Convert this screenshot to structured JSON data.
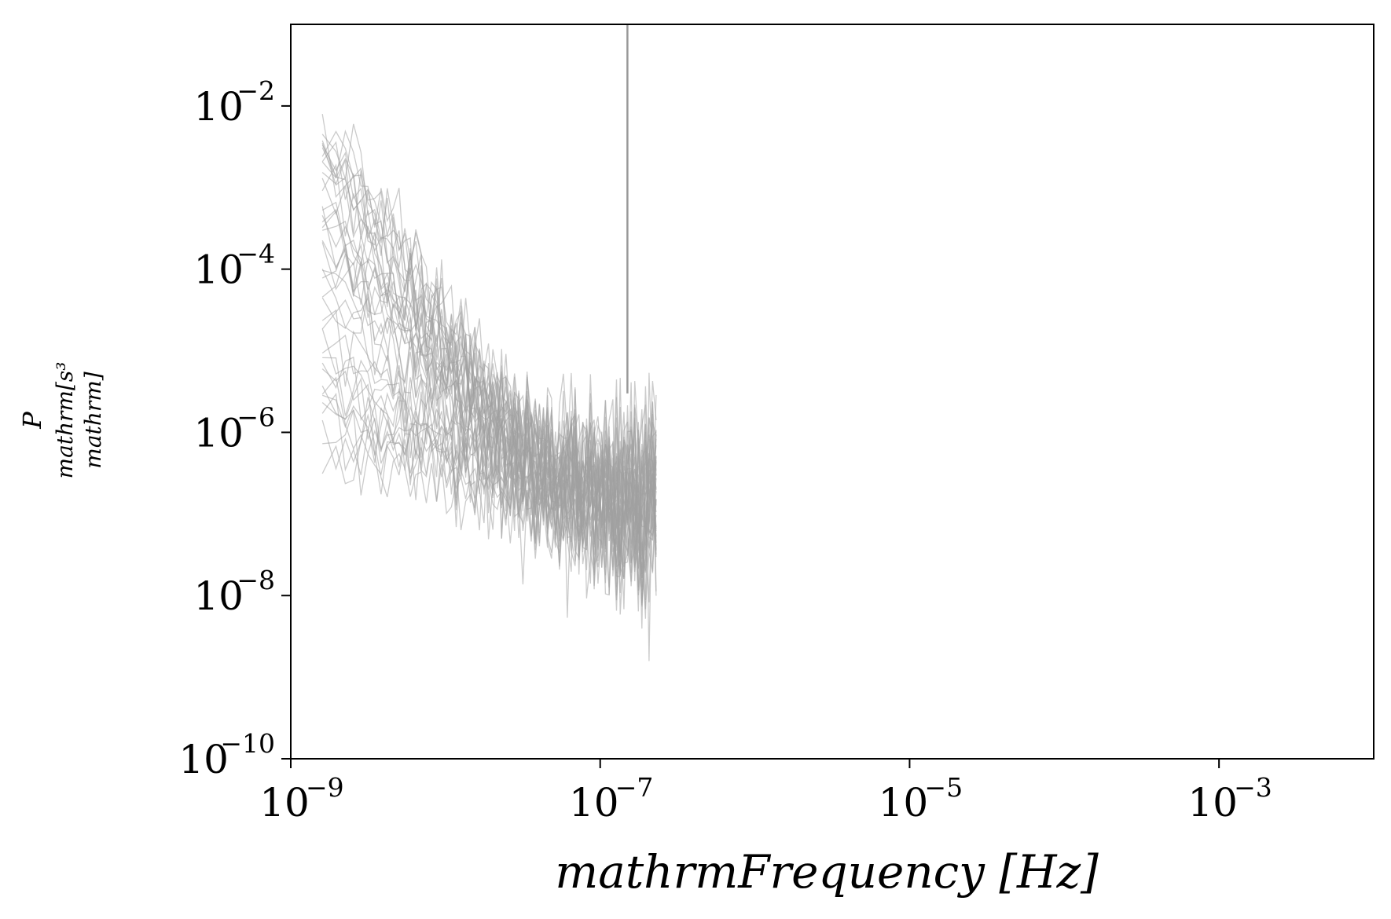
{
  "chart_data": {
    "type": "line",
    "title": "",
    "xlabel": "mathrmFrequency [Hz]",
    "ylabel_lines": [
      "P",
      "mathrm[s³",
      "mathrm]"
    ],
    "x_scale": "log",
    "y_scale": "log",
    "xlim": [
      1e-09,
      0.01
    ],
    "ylim": [
      1e-10,
      0.1
    ],
    "grid": false,
    "legend": "none",
    "line_color": "#a0a0a0",
    "x_ticks": [
      {
        "value": 1e-09,
        "base": "10",
        "exp": "−9"
      },
      {
        "value": 1e-07,
        "base": "10",
        "exp": "−7"
      },
      {
        "value": 1e-05,
        "base": "10",
        "exp": "−5"
      },
      {
        "value": 0.001,
        "base": "10",
        "exp": "−3"
      }
    ],
    "y_ticks": [
      {
        "value": 1e-10,
        "base": "10",
        "exp": "−10"
      },
      {
        "value": 1e-08,
        "base": "10",
        "exp": "−8"
      },
      {
        "value": 1e-06,
        "base": "10",
        "exp": "−6"
      },
      {
        "value": 0.0001,
        "base": "10",
        "exp": "−4"
      },
      {
        "value": 0.01,
        "base": "10",
        "exp": "−2"
      }
    ],
    "series_summary": {
      "count": 40,
      "x_min": 1.6e-09,
      "x_max": 2.3e-07,
      "points_per_series": 72,
      "low_freq_level_range": [
        3e-07,
        0.01
      ],
      "high_freq_level": 1.5e-07,
      "spectral_slope": -1.3,
      "scatter_decades": 0.6
    },
    "spike": {
      "x": 1.5e-07,
      "y_from": 3e-06,
      "y_to": 0.1
    }
  }
}
